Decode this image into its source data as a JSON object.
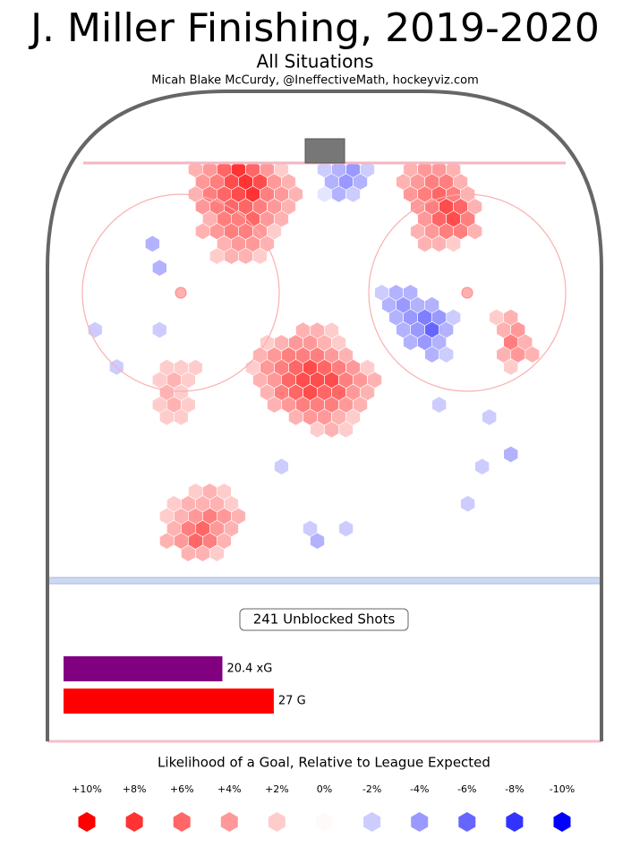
{
  "chart_data": {
    "type": "hexbin",
    "title": "J. Miller Finishing, 2019-2020",
    "subtitle": "All Situations",
    "credit": "Micah Blake McCurdy, @IneffectiveMath, hockeyviz.com",
    "shots_label": "241 Unblocked Shots",
    "colors": {
      "positive": "#ff0000",
      "negative": "#0000ff"
    },
    "hexes": [
      [
        -19.8,
        1.0,
        3
      ],
      [
        -17.6,
        1.0,
        4
      ],
      [
        -15.4,
        1.0,
        6
      ],
      [
        -13.2,
        1.0,
        8
      ],
      [
        -11,
        1.0,
        6
      ],
      [
        -8.8,
        1.0,
        4
      ],
      [
        -6.6,
        1.0,
        2
      ],
      [
        -18.7,
        2.9,
        4
      ],
      [
        -16.5,
        2.9,
        5
      ],
      [
        -14.3,
        2.9,
        7
      ],
      [
        -12.1,
        2.9,
        8
      ],
      [
        -9.9,
        2.9,
        7
      ],
      [
        -7.7,
        2.9,
        4
      ],
      [
        -5.5,
        2.9,
        3
      ],
      [
        -19.8,
        4.8,
        3
      ],
      [
        -17.6,
        4.8,
        5
      ],
      [
        -15.4,
        4.8,
        6
      ],
      [
        -13.2,
        4.8,
        7
      ],
      [
        -11,
        4.8,
        8
      ],
      [
        -8.8,
        4.8,
        5
      ],
      [
        -6.6,
        4.8,
        4
      ],
      [
        -4.4,
        4.8,
        3
      ],
      [
        -18.7,
        6.7,
        4
      ],
      [
        -16.5,
        6.7,
        5
      ],
      [
        -14.3,
        6.7,
        6
      ],
      [
        -12.1,
        6.7,
        6
      ],
      [
        -9.9,
        6.7,
        5
      ],
      [
        -7.7,
        6.7,
        4
      ],
      [
        -5.5,
        6.7,
        3
      ],
      [
        -17.6,
        8.6,
        3
      ],
      [
        -15.4,
        8.6,
        5
      ],
      [
        -13.2,
        8.6,
        5
      ],
      [
        -11,
        8.6,
        6
      ],
      [
        -8.8,
        8.6,
        4
      ],
      [
        -6.6,
        8.6,
        3
      ],
      [
        -18.7,
        10.5,
        3
      ],
      [
        -16.5,
        10.5,
        4
      ],
      [
        -14.3,
        10.5,
        5
      ],
      [
        -12.1,
        10.5,
        5
      ],
      [
        -9.9,
        10.5,
        4
      ],
      [
        -7.7,
        10.5,
        2
      ],
      [
        -15.4,
        12.4,
        3
      ],
      [
        -13.2,
        12.4,
        4
      ],
      [
        -11,
        12.4,
        4
      ],
      [
        -8.8,
        12.4,
        3
      ],
      [
        -16.5,
        14.3,
        2
      ],
      [
        -14.3,
        14.3,
        3
      ],
      [
        -12.1,
        14.3,
        3
      ],
      [
        -9.9,
        14.3,
        2
      ],
      [
        13.2,
        1.0,
        3
      ],
      [
        15.4,
        1.0,
        4
      ],
      [
        17.6,
        1.0,
        4
      ],
      [
        19.8,
        1.0,
        3
      ],
      [
        12.1,
        2.9,
        3
      ],
      [
        14.3,
        2.9,
        4
      ],
      [
        16.5,
        2.9,
        5
      ],
      [
        18.7,
        2.9,
        5
      ],
      [
        20.9,
        2.9,
        3
      ],
      [
        13.2,
        4.8,
        4
      ],
      [
        15.4,
        4.8,
        5
      ],
      [
        17.6,
        4.8,
        6
      ],
      [
        19.8,
        4.8,
        5
      ],
      [
        22,
        4.8,
        3
      ],
      [
        14.3,
        6.7,
        4
      ],
      [
        16.5,
        6.7,
        5
      ],
      [
        18.7,
        6.7,
        7
      ],
      [
        20.9,
        6.7,
        6
      ],
      [
        23.1,
        6.7,
        3
      ],
      [
        15.4,
        8.6,
        4
      ],
      [
        17.6,
        8.6,
        6
      ],
      [
        19.8,
        8.6,
        7
      ],
      [
        22,
        8.6,
        5
      ],
      [
        14.3,
        10.5,
        3
      ],
      [
        16.5,
        10.5,
        4
      ],
      [
        18.7,
        10.5,
        5
      ],
      [
        20.9,
        10.5,
        5
      ],
      [
        23.1,
        10.5,
        3
      ],
      [
        15.4,
        12.4,
        3
      ],
      [
        17.6,
        12.4,
        3
      ],
      [
        19.8,
        12.4,
        2
      ],
      [
        0,
        1.0,
        -2
      ],
      [
        2.2,
        1.0,
        -3
      ],
      [
        4.4,
        1.0,
        -4
      ],
      [
        6.6,
        1.0,
        -2
      ],
      [
        1.1,
        2.9,
        -3
      ],
      [
        3.3,
        2.9,
        -4
      ],
      [
        5.5,
        2.9,
        -3
      ],
      [
        0,
        4.8,
        -1
      ],
      [
        2.2,
        4.8,
        -3
      ],
      [
        4.4,
        4.8,
        -2
      ],
      [
        -3.3,
        25.7,
        3
      ],
      [
        -1.1,
        25.7,
        3
      ],
      [
        1.1,
        25.7,
        2
      ],
      [
        -8.8,
        27.6,
        2
      ],
      [
        -6.6,
        27.6,
        3
      ],
      [
        -4.4,
        27.6,
        4
      ],
      [
        -2.2,
        27.6,
        4
      ],
      [
        0,
        27.6,
        3
      ],
      [
        2.2,
        27.6,
        2
      ],
      [
        -9.9,
        29.5,
        3
      ],
      [
        -7.7,
        29.5,
        4
      ],
      [
        -5.5,
        29.5,
        5
      ],
      [
        -3.3,
        29.5,
        5
      ],
      [
        -1.1,
        29.5,
        5
      ],
      [
        1.1,
        29.5,
        4
      ],
      [
        3.3,
        29.5,
        3
      ],
      [
        -11,
        31.4,
        2
      ],
      [
        -8.8,
        31.4,
        4
      ],
      [
        -6.6,
        31.4,
        5
      ],
      [
        -4.4,
        31.4,
        6
      ],
      [
        -2.2,
        31.4,
        7
      ],
      [
        0,
        31.4,
        6
      ],
      [
        2.2,
        31.4,
        5
      ],
      [
        4.4,
        31.4,
        4
      ],
      [
        6.6,
        31.4,
        2
      ],
      [
        -9.9,
        33.3,
        3
      ],
      [
        -7.7,
        33.3,
        4
      ],
      [
        -5.5,
        33.3,
        6
      ],
      [
        -3.3,
        33.3,
        7
      ],
      [
        -1.1,
        33.3,
        7
      ],
      [
        1.1,
        33.3,
        7
      ],
      [
        3.3,
        33.3,
        5
      ],
      [
        5.5,
        33.3,
        4
      ],
      [
        7.7,
        33.3,
        3
      ],
      [
        -8.8,
        35.2,
        3
      ],
      [
        -6.6,
        35.2,
        5
      ],
      [
        -4.4,
        35.2,
        6
      ],
      [
        -2.2,
        35.2,
        7
      ],
      [
        0,
        35.2,
        6
      ],
      [
        2.2,
        35.2,
        6
      ],
      [
        4.4,
        35.2,
        4
      ],
      [
        6.6,
        35.2,
        3
      ],
      [
        -7.7,
        37.1,
        3
      ],
      [
        -5.5,
        37.1,
        4
      ],
      [
        -3.3,
        37.1,
        5
      ],
      [
        -1.1,
        37.1,
        5
      ],
      [
        1.1,
        37.1,
        5
      ],
      [
        3.3,
        37.1,
        4
      ],
      [
        5.5,
        37.1,
        3
      ],
      [
        -4.4,
        39,
        3
      ],
      [
        -2.2,
        39,
        4
      ],
      [
        0,
        39,
        4
      ],
      [
        2.2,
        39,
        3
      ],
      [
        4.4,
        39,
        2
      ],
      [
        -1.1,
        40.9,
        2
      ],
      [
        1.1,
        40.9,
        3
      ],
      [
        3.3,
        40.9,
        2
      ],
      [
        8.8,
        19.9,
        -2
      ],
      [
        11,
        19.9,
        -3
      ],
      [
        13.2,
        19.9,
        -3
      ],
      [
        9.9,
        21.8,
        -3
      ],
      [
        12.1,
        21.8,
        -4
      ],
      [
        14.3,
        21.8,
        -3
      ],
      [
        16.5,
        21.8,
        -3
      ],
      [
        11,
        23.7,
        -3
      ],
      [
        13.2,
        23.7,
        -4
      ],
      [
        15.4,
        23.7,
        -5
      ],
      [
        17.6,
        23.7,
        -4
      ],
      [
        19.8,
        23.7,
        -2
      ],
      [
        12.1,
        25.6,
        -3
      ],
      [
        14.3,
        25.6,
        -4
      ],
      [
        16.5,
        25.6,
        -6
      ],
      [
        18.7,
        25.6,
        -3
      ],
      [
        13.2,
        27.5,
        -3
      ],
      [
        15.4,
        27.5,
        -4
      ],
      [
        17.6,
        27.5,
        -3
      ],
      [
        16.5,
        29.4,
        -3
      ],
      [
        18.7,
        29.4,
        -2
      ],
      [
        26.4,
        23.7,
        2
      ],
      [
        28.6,
        23.7,
        3
      ],
      [
        27.5,
        25.6,
        3
      ],
      [
        29.7,
        25.6,
        4
      ],
      [
        28.6,
        27.5,
        5
      ],
      [
        30.8,
        27.5,
        3
      ],
      [
        27.5,
        29.4,
        3
      ],
      [
        29.7,
        29.4,
        4
      ],
      [
        31.9,
        29.4,
        3
      ],
      [
        28.6,
        31.3,
        2
      ],
      [
        -24.2,
        31.4,
        2
      ],
      [
        -22,
        31.4,
        2
      ],
      [
        -19.8,
        31.4,
        2
      ],
      [
        -25.3,
        33.3,
        2
      ],
      [
        -23.1,
        33.3,
        3
      ],
      [
        -20.9,
        33.3,
        2
      ],
      [
        -24.2,
        35.2,
        3
      ],
      [
        -22,
        35.2,
        2
      ],
      [
        -25.3,
        37.1,
        2
      ],
      [
        -23.1,
        37.1,
        3
      ],
      [
        -20.9,
        37.1,
        2
      ],
      [
        -24.2,
        39,
        2
      ],
      [
        -22,
        39,
        2
      ],
      [
        -19.8,
        50.4,
        2
      ],
      [
        -17.6,
        50.4,
        3
      ],
      [
        -15.4,
        50.4,
        2
      ],
      [
        -23.1,
        52.3,
        2
      ],
      [
        -20.9,
        52.3,
        3
      ],
      [
        -18.7,
        52.3,
        3
      ],
      [
        -16.5,
        52.3,
        3
      ],
      [
        -14.3,
        52.3,
        2
      ],
      [
        -24.2,
        54.2,
        2
      ],
      [
        -22,
        54.2,
        3
      ],
      [
        -19.8,
        54.2,
        4
      ],
      [
        -17.6,
        54.2,
        5
      ],
      [
        -15.4,
        54.2,
        4
      ],
      [
        -13.2,
        54.2,
        3
      ],
      [
        -23.1,
        56.1,
        3
      ],
      [
        -20.9,
        56.1,
        5
      ],
      [
        -18.7,
        56.1,
        6
      ],
      [
        -16.5,
        56.1,
        4
      ],
      [
        -14.3,
        56.1,
        3
      ],
      [
        -24.2,
        58,
        3
      ],
      [
        -22,
        58,
        4
      ],
      [
        -19.8,
        58,
        6
      ],
      [
        -17.6,
        58,
        5
      ],
      [
        -15.4,
        58,
        3
      ],
      [
        -20.9,
        59.9,
        3
      ],
      [
        -18.7,
        59.9,
        3
      ],
      [
        -16.5,
        59.9,
        2
      ],
      [
        -26.4,
        12.4,
        -3
      ],
      [
        -25.3,
        16.1,
        -3
      ],
      [
        -35.2,
        25.6,
        -2
      ],
      [
        -31.9,
        31.3,
        -2
      ],
      [
        -25.3,
        25.6,
        -2
      ],
      [
        17.6,
        37.1,
        -2
      ],
      [
        25.3,
        39,
        -2
      ],
      [
        28.6,
        44.7,
        -3
      ],
      [
        -6.6,
        46.6,
        -2
      ],
      [
        -2.2,
        56.1,
        -2
      ],
      [
        -1.1,
        58,
        -3
      ],
      [
        3.3,
        56.1,
        -2
      ],
      [
        22,
        52.3,
        -2
      ],
      [
        24.2,
        46.6,
        -2
      ]
    ],
    "summary": {
      "values": [
        20.4,
        27
      ],
      "value_labels": [
        "20.4 xG",
        "27 G"
      ],
      "colors": [
        "#800080",
        "#ff0000"
      ]
    },
    "legend_title": "Likelihood of a Goal, Relative to League Expected",
    "legend": [
      {
        "value": 10,
        "label": "+10%"
      },
      {
        "value": 8,
        "label": "+8%"
      },
      {
        "value": 6,
        "label": "+6%"
      },
      {
        "value": 4,
        "label": "+4%"
      },
      {
        "value": 2,
        "label": "+2%"
      },
      {
        "value": 0,
        "label": "0%"
      },
      {
        "value": -2,
        "label": "-2%"
      },
      {
        "value": -4,
        "label": "-4%"
      },
      {
        "value": -6,
        "label": "-6%"
      },
      {
        "value": -8,
        "label": "-8%"
      },
      {
        "value": -10,
        "label": "-10%"
      }
    ]
  }
}
